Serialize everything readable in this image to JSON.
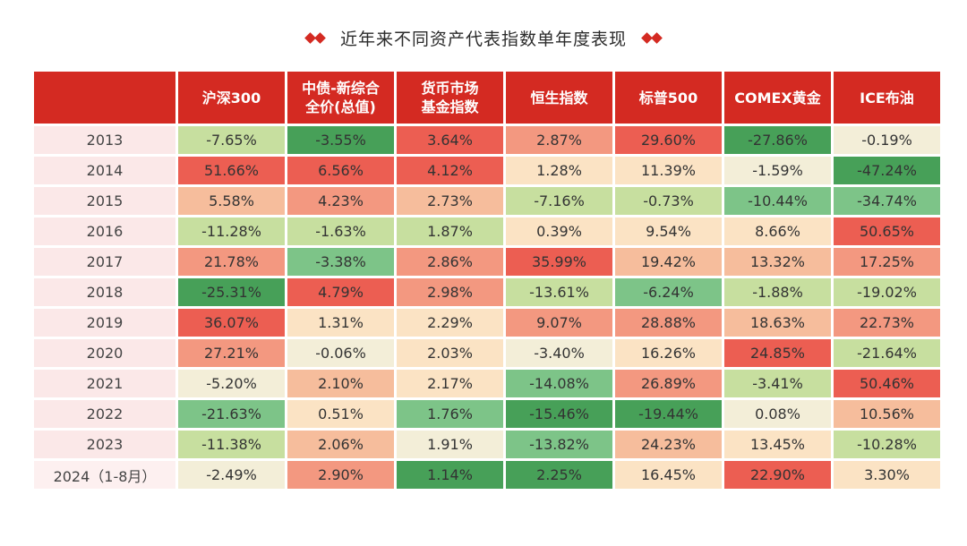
{
  "title": "近年来不同资产代表指数单年度表现",
  "chart_data": {
    "type": "table",
    "title": "近年来不同资产代表指数单年度表现",
    "columns": [
      "沪深300",
      "中债-新综合全价(总值)",
      "货币市场基金指数",
      "恒生指数",
      "标普500",
      "COMEX黄金",
      "ICE布油"
    ],
    "column_lines": [
      [
        "沪深300"
      ],
      [
        "中债-新综合",
        "全价(总值)"
      ],
      [
        "货币市场",
        "基金指数"
      ],
      [
        "恒生指数"
      ],
      [
        "标普500"
      ],
      [
        "COMEX黄金"
      ],
      [
        "ICE布油"
      ]
    ],
    "rows": [
      {
        "year": "2013",
        "values": [
          "-7.65%",
          "-3.55%",
          "3.64%",
          "2.87%",
          "29.60%",
          "-27.86%",
          "-0.19%"
        ],
        "levels": [
          -1,
          -3,
          4,
          3,
          4,
          -3,
          0
        ]
      },
      {
        "year": "2014",
        "values": [
          "51.66%",
          "6.56%",
          "4.12%",
          "1.28%",
          "11.39%",
          "-1.59%",
          "-47.24%"
        ],
        "levels": [
          4,
          4,
          4,
          1,
          1,
          0,
          -3
        ]
      },
      {
        "year": "2015",
        "values": [
          "5.58%",
          "4.23%",
          "2.73%",
          "-7.16%",
          "-0.73%",
          "-10.44%",
          "-34.74%"
        ],
        "levels": [
          2,
          3,
          2,
          -1,
          -1,
          -2,
          -2
        ]
      },
      {
        "year": "2016",
        "values": [
          "-11.28%",
          "-1.63%",
          "1.87%",
          "0.39%",
          "9.54%",
          "8.66%",
          "50.65%"
        ],
        "levels": [
          -1,
          -1,
          -1,
          1,
          1,
          1,
          4
        ]
      },
      {
        "year": "2017",
        "values": [
          "21.78%",
          "-3.38%",
          "2.86%",
          "35.99%",
          "19.42%",
          "13.32%",
          "17.25%"
        ],
        "levels": [
          3,
          -2,
          3,
          4,
          2,
          2,
          3
        ]
      },
      {
        "year": "2018",
        "values": [
          "-25.31%",
          "4.79%",
          "2.98%",
          "-13.61%",
          "-6.24%",
          "-1.88%",
          "-19.02%"
        ],
        "levels": [
          -3,
          4,
          3,
          -1,
          -2,
          -1,
          -1
        ]
      },
      {
        "year": "2019",
        "values": [
          "36.07%",
          "1.31%",
          "2.29%",
          "9.07%",
          "28.88%",
          "18.63%",
          "22.73%"
        ],
        "levels": [
          4,
          1,
          1,
          3,
          3,
          2,
          3
        ]
      },
      {
        "year": "2020",
        "values": [
          "27.21%",
          "-0.06%",
          "2.03%",
          "-3.40%",
          "16.26%",
          "24.85%",
          "-21.64%"
        ],
        "levels": [
          3,
          0,
          1,
          0,
          1,
          4,
          -1
        ]
      },
      {
        "year": "2021",
        "values": [
          "-5.20%",
          "2.10%",
          "2.17%",
          "-14.08%",
          "26.89%",
          "-3.41%",
          "50.46%"
        ],
        "levels": [
          0,
          2,
          1,
          -2,
          3,
          -1,
          4
        ]
      },
      {
        "year": "2022",
        "values": [
          "-21.63%",
          "0.51%",
          "1.76%",
          "-15.46%",
          "-19.44%",
          "0.08%",
          "10.56%"
        ],
        "levels": [
          -2,
          1,
          -2,
          -3,
          -3,
          0,
          2
        ]
      },
      {
        "year": "2023",
        "values": [
          "-11.38%",
          "2.06%",
          "1.91%",
          "-13.82%",
          "24.23%",
          "13.45%",
          "-10.28%"
        ],
        "levels": [
          -1,
          2,
          0,
          -2,
          2,
          1,
          -1
        ]
      },
      {
        "year": "2024（1-8月）",
        "values": [
          "-2.49%",
          "2.90%",
          "1.14%",
          "2.25%",
          "16.45%",
          "22.90%",
          "3.30%"
        ],
        "levels": [
          0,
          3,
          -3,
          -3,
          1,
          4,
          1
        ]
      }
    ]
  }
}
